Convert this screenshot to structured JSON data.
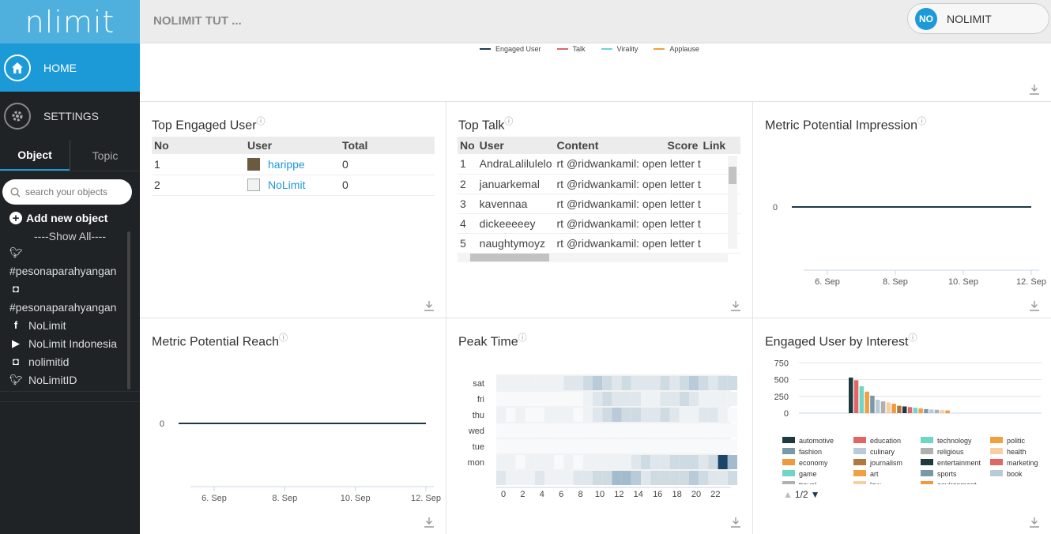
{
  "app": {
    "logo": "nlimit"
  },
  "nav": {
    "home": "HOME",
    "settings": "SETTINGS"
  },
  "object_tabs": {
    "object": "Object",
    "topic": "Topic"
  },
  "search": {
    "placeholder": "search your objects"
  },
  "add_object": "Add new object",
  "show_all": "----Show All----",
  "objects": [
    {
      "icon": "twitter-icon",
      "label": ""
    },
    {
      "icon": "hashtag",
      "label": "#pesonaparahyangan"
    },
    {
      "icon": "instagram-icon",
      "label": ""
    },
    {
      "icon": "hashtag",
      "label": "#pesonaparahyangan"
    },
    {
      "icon": "facebook-icon",
      "label": "NoLimit"
    },
    {
      "icon": "youtube-icon",
      "label": "NoLimit Indonesia"
    },
    {
      "icon": "instagram-icon",
      "label": "nolimitid"
    },
    {
      "icon": "twitter-icon",
      "label": "NoLimitID"
    }
  ],
  "header": {
    "title": "NOLIMIT TUT ...",
    "user_initials": "NO",
    "user_name": "NOLIMIT"
  },
  "legend_top": [
    {
      "label": "Engaged User",
      "color": "#1e3a52"
    },
    {
      "label": "Talk",
      "color": "#e06666"
    },
    {
      "label": "Virality",
      "color": "#6fd6d6"
    },
    {
      "label": "Applause",
      "color": "#f0a040"
    }
  ],
  "top_engaged": {
    "title": "Top Engaged User",
    "columns": [
      "No",
      "User",
      "Total"
    ],
    "rows": [
      {
        "no": "1",
        "user": "harippe",
        "total": "0"
      },
      {
        "no": "2",
        "user": "NoLimit",
        "total": "0"
      }
    ]
  },
  "top_talk": {
    "title": "Top Talk",
    "columns": [
      "No",
      "User",
      "Content",
      "Score",
      "Link"
    ],
    "rows": [
      {
        "no": "1",
        "user": "AndraLalilulelo",
        "content": "rt @ridwankamil: open letter t"
      },
      {
        "no": "2",
        "user": "januarkemal",
        "content": "rt @ridwankamil: open letter t"
      },
      {
        "no": "3",
        "user": "kavennaa",
        "content": "rt @ridwankamil: open letter t"
      },
      {
        "no": "4",
        "user": "dickeeeeey",
        "content": "rt @ridwankamil: open letter t"
      },
      {
        "no": "5",
        "user": "naughtymoyz",
        "content": "rt @ridwankamil: open letter t"
      }
    ]
  },
  "metric_impression": {
    "title": "Metric Potential Impression",
    "chart_data": {
      "type": "line",
      "x": [
        "6. Sep",
        "8. Sep",
        "10. Sep",
        "12. Sep"
      ],
      "y_ticks": [
        "0"
      ],
      "series": [
        {
          "values": [
            0,
            0,
            0,
            0
          ]
        }
      ]
    }
  },
  "metric_reach": {
    "title": "Metric Potential Reach",
    "chart_data": {
      "type": "line",
      "x": [
        "6. Sep",
        "8. Sep",
        "10. Sep",
        "12. Sep"
      ],
      "y_ticks": [
        "0"
      ],
      "series": [
        {
          "values": [
            0,
            0,
            0,
            0
          ]
        }
      ]
    }
  },
  "peak_time": {
    "title": "Peak Time",
    "chart_data": {
      "type": "heatmap",
      "rows": [
        "sat",
        "fri",
        "thu",
        "wed",
        "tue",
        "mon",
        ""
      ],
      "x_ticks": [
        "0",
        "2",
        "4",
        "6",
        "8",
        "10",
        "12",
        "14",
        "16",
        "18",
        "20",
        "22"
      ],
      "values": [
        [
          1,
          1,
          1,
          1,
          1,
          1,
          1,
          2,
          2,
          3,
          4,
          3,
          2,
          3,
          2,
          2,
          2,
          3,
          2,
          3,
          4,
          3,
          2,
          3,
          3
        ],
        [
          0,
          0,
          0,
          0,
          0,
          0,
          0,
          0,
          0,
          1,
          2,
          3,
          2,
          2,
          2,
          1,
          1,
          2,
          2,
          3,
          2,
          1,
          1,
          1,
          1
        ],
        [
          1,
          0,
          1,
          0,
          0,
          1,
          1,
          1,
          0,
          1,
          2,
          3,
          4,
          3,
          3,
          2,
          2,
          3,
          2,
          1,
          1,
          2,
          2,
          1,
          0
        ],
        [
          0,
          0,
          0,
          0,
          0,
          0,
          0,
          0,
          0,
          0,
          0,
          0,
          0,
          0,
          0,
          0,
          0,
          0,
          0,
          0,
          0,
          0,
          0,
          0,
          0
        ],
        [
          0,
          0,
          0,
          0,
          0,
          0,
          0,
          0,
          0,
          0,
          0,
          0,
          0,
          0,
          0,
          0,
          0,
          0,
          0,
          0,
          0,
          0,
          0,
          0,
          0
        ],
        [
          1,
          1,
          0,
          1,
          1,
          1,
          0,
          1,
          0,
          1,
          1,
          1,
          1,
          1,
          2,
          3,
          2,
          2,
          3,
          3,
          3,
          2,
          3,
          7,
          5
        ],
        [
          2,
          1,
          1,
          1,
          2,
          1,
          1,
          1,
          2,
          2,
          3,
          3,
          5,
          5,
          4,
          2,
          3,
          3,
          3,
          3,
          4,
          3,
          2,
          2,
          3
        ]
      ]
    }
  },
  "interest": {
    "title": "Engaged User by Interest",
    "chart_data": {
      "type": "bar",
      "y_ticks": [
        "750",
        "500",
        "250",
        "0"
      ],
      "ylim": [
        0,
        800
      ],
      "categories": [
        "automotive",
        "education",
        "technology",
        "politic",
        "fashion",
        "culinary",
        "religious",
        "health",
        "economy",
        "journalism",
        "entertainment",
        "marketing",
        "game",
        "art",
        "sports",
        "book",
        "travel",
        "law",
        "environment"
      ],
      "values": [
        530,
        490,
        400,
        320,
        260,
        200,
        175,
        160,
        140,
        110,
        100,
        90,
        80,
        70,
        60,
        55,
        50,
        45,
        40
      ],
      "colors": [
        "#1e3a3f",
        "#e06666",
        "#6fd6c6",
        "#f0a040",
        "#7a99a8",
        "#b9cbd6",
        "#b0b0b0",
        "#f8cfa0",
        "#f09a40",
        "#b07840",
        "#1e3a3f",
        "#e06666",
        "#6fd6c6",
        "#f0a040",
        "#7a99a8",
        "#b9cbd6",
        "#b0b0b0",
        "#f8cfa0",
        "#f09a40"
      ],
      "legend_visible": [
        "automotive",
        "education",
        "technology",
        "politic",
        "fashion",
        "culinary",
        "religious",
        "health",
        "economy",
        "journalism",
        "entertainment",
        "marketing",
        "game",
        "art",
        "sports",
        "book",
        "travel",
        "law",
        "environment"
      ],
      "pager": "1/2"
    }
  }
}
